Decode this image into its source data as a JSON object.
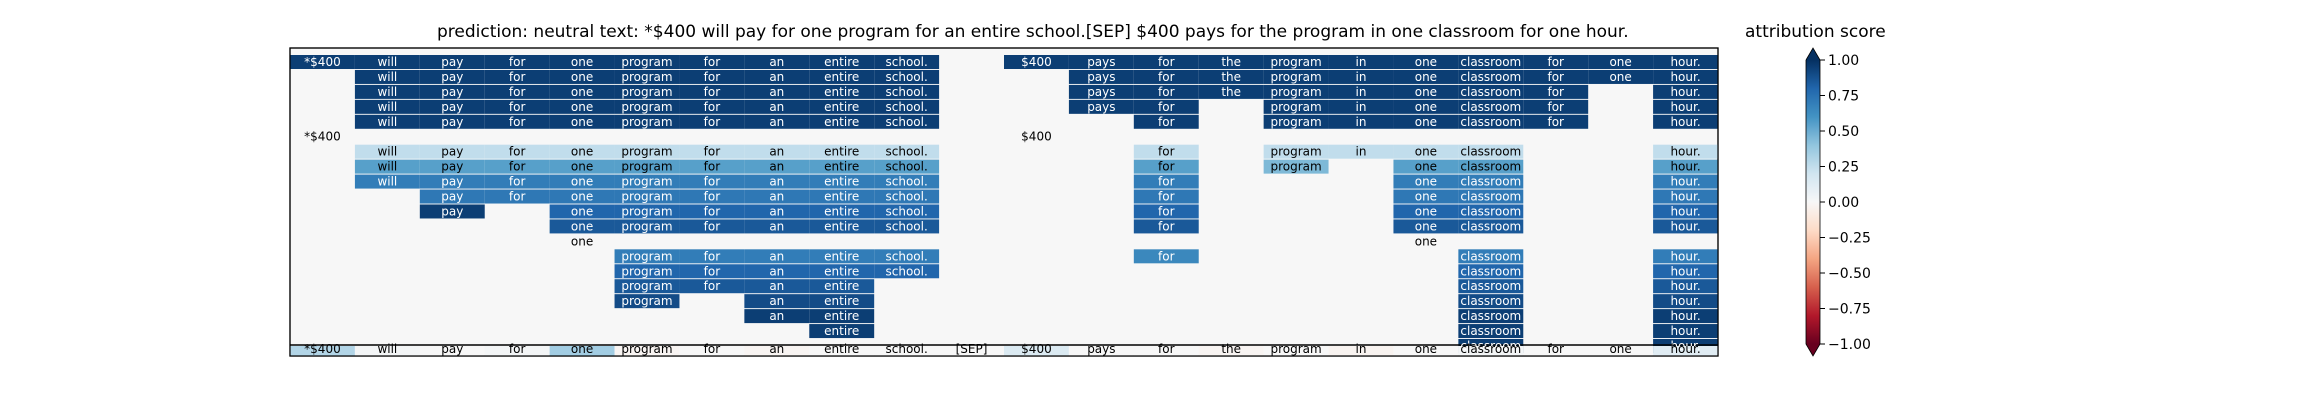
{
  "title": "prediction:  neutral     text:  *$400 will pay for one program for an entire school.[SEP] $400 pays for the program in one classroom for one hour.",
  "colorbar": {
    "label": "attribution score",
    "ticks": [
      "1.00",
      "0.75",
      "0.50",
      "0.25",
      "0.00",
      "−0.25",
      "−0.50",
      "−0.75",
      "−1.00"
    ],
    "tick_values": [
      1.0,
      0.75,
      0.5,
      0.25,
      0.0,
      -0.25,
      -0.5,
      -0.75,
      -1.0
    ]
  },
  "chart_data": {
    "type": "heatmap",
    "description_rows": "hierarchical attribution of spans over tokens",
    "tokens": [
      "*$400",
      "will",
      "pay",
      "for",
      "one",
      "program",
      "for",
      "an",
      "entire",
      "school.",
      "[SEP]",
      "$400",
      "pays",
      "for",
      "the",
      "program",
      "in",
      "one",
      "classroom",
      "for",
      "one",
      "hour."
    ],
    "value_range": [
      -1.0,
      1.0
    ],
    "colormap": "RdBu",
    "rows": [
      {
        "cells": [
          [
            0,
            0.95
          ],
          [
            1,
            0.95
          ],
          [
            2,
            0.95
          ],
          [
            3,
            0.95
          ],
          [
            4,
            0.95
          ],
          [
            5,
            0.95
          ],
          [
            6,
            0.95
          ],
          [
            7,
            0.95
          ],
          [
            8,
            0.95
          ],
          [
            9,
            0.95
          ],
          [
            11,
            0.95
          ],
          [
            12,
            0.95
          ],
          [
            13,
            0.95
          ],
          [
            14,
            0.95
          ],
          [
            15,
            0.95
          ],
          [
            16,
            0.95
          ],
          [
            17,
            0.95
          ],
          [
            18,
            0.95
          ],
          [
            19,
            0.95
          ],
          [
            20,
            0.95
          ],
          [
            21,
            0.95
          ]
        ]
      },
      {
        "cells": [
          [
            1,
            0.95
          ],
          [
            2,
            0.95
          ],
          [
            3,
            0.95
          ],
          [
            4,
            0.95
          ],
          [
            5,
            0.95
          ],
          [
            6,
            0.95
          ],
          [
            7,
            0.95
          ],
          [
            8,
            0.95
          ],
          [
            9,
            0.95
          ],
          [
            12,
            0.95
          ],
          [
            13,
            0.95
          ],
          [
            14,
            0.95
          ],
          [
            15,
            0.95
          ],
          [
            16,
            0.95
          ],
          [
            17,
            0.95
          ],
          [
            18,
            0.95
          ],
          [
            19,
            0.95
          ],
          [
            20,
            0.95
          ],
          [
            21,
            0.95
          ]
        ]
      },
      {
        "cells": [
          [
            1,
            0.95
          ],
          [
            2,
            0.95
          ],
          [
            3,
            0.95
          ],
          [
            4,
            0.95
          ],
          [
            5,
            0.95
          ],
          [
            6,
            0.95
          ],
          [
            7,
            0.95
          ],
          [
            8,
            0.95
          ],
          [
            9,
            0.95
          ],
          [
            12,
            0.95
          ],
          [
            13,
            0.95
          ],
          [
            14,
            0.95
          ],
          [
            15,
            0.95
          ],
          [
            16,
            0.95
          ],
          [
            17,
            0.95
          ],
          [
            18,
            0.95
          ],
          [
            19,
            0.95
          ],
          [
            21,
            0.95
          ]
        ]
      },
      {
        "cells": [
          [
            1,
            0.95
          ],
          [
            2,
            0.95
          ],
          [
            3,
            0.95
          ],
          [
            4,
            0.95
          ],
          [
            5,
            0.95
          ],
          [
            6,
            0.95
          ],
          [
            7,
            0.95
          ],
          [
            8,
            0.95
          ],
          [
            9,
            0.95
          ],
          [
            12,
            0.95
          ],
          [
            13,
            0.95
          ],
          [
            15,
            0.95
          ],
          [
            16,
            0.95
          ],
          [
            17,
            0.95
          ],
          [
            18,
            0.95
          ],
          [
            19,
            0.95
          ],
          [
            21,
            0.95
          ]
        ]
      },
      {
        "cells": [
          [
            1,
            0.95
          ],
          [
            2,
            0.95
          ],
          [
            3,
            0.95
          ],
          [
            4,
            0.95
          ],
          [
            5,
            0.95
          ],
          [
            6,
            0.95
          ],
          [
            7,
            0.95
          ],
          [
            8,
            0.95
          ],
          [
            9,
            0.95
          ],
          [
            13,
            0.95
          ],
          [
            15,
            0.95
          ],
          [
            16,
            0.95
          ],
          [
            17,
            0.95
          ],
          [
            18,
            0.95
          ],
          [
            19,
            0.95
          ],
          [
            21,
            0.95
          ]
        ]
      },
      {
        "cells": [
          [
            0,
            0.0
          ],
          [
            11,
            0.0
          ]
        ]
      },
      {
        "cells": [
          [
            1,
            0.25
          ],
          [
            2,
            0.25
          ],
          [
            3,
            0.25
          ],
          [
            4,
            0.25
          ],
          [
            5,
            0.25
          ],
          [
            6,
            0.25
          ],
          [
            7,
            0.25
          ],
          [
            8,
            0.25
          ],
          [
            9,
            0.25
          ],
          [
            13,
            0.25
          ],
          [
            15,
            0.25
          ],
          [
            16,
            0.25
          ],
          [
            17,
            0.25
          ],
          [
            18,
            0.25
          ],
          [
            21,
            0.25
          ]
        ]
      },
      {
        "cells": [
          [
            1,
            0.55
          ],
          [
            2,
            0.55
          ],
          [
            3,
            0.55
          ],
          [
            4,
            0.55
          ],
          [
            5,
            0.55
          ],
          [
            6,
            0.55
          ],
          [
            7,
            0.55
          ],
          [
            8,
            0.55
          ],
          [
            9,
            0.55
          ],
          [
            13,
            0.55
          ],
          [
            15,
            0.45
          ],
          [
            17,
            0.55
          ],
          [
            18,
            0.55
          ],
          [
            21,
            0.55
          ]
        ]
      },
      {
        "cells": [
          [
            1,
            0.7
          ],
          [
            2,
            0.7
          ],
          [
            3,
            0.7
          ],
          [
            4,
            0.7
          ],
          [
            5,
            0.7
          ],
          [
            6,
            0.7
          ],
          [
            7,
            0.7
          ],
          [
            8,
            0.7
          ],
          [
            9,
            0.7
          ],
          [
            13,
            0.7
          ],
          [
            17,
            0.7
          ],
          [
            18,
            0.7
          ],
          [
            21,
            0.7
          ]
        ]
      },
      {
        "cells": [
          [
            2,
            0.72
          ],
          [
            3,
            0.72
          ],
          [
            4,
            0.72
          ],
          [
            5,
            0.72
          ],
          [
            6,
            0.72
          ],
          [
            7,
            0.72
          ],
          [
            8,
            0.72
          ],
          [
            9,
            0.72
          ],
          [
            13,
            0.72
          ],
          [
            17,
            0.72
          ],
          [
            18,
            0.72
          ],
          [
            21,
            0.72
          ]
        ]
      },
      {
        "cells": [
          [
            2,
            0.95
          ],
          [
            4,
            0.8
          ],
          [
            5,
            0.8
          ],
          [
            6,
            0.8
          ],
          [
            7,
            0.8
          ],
          [
            8,
            0.8
          ],
          [
            9,
            0.8
          ],
          [
            13,
            0.8
          ],
          [
            17,
            0.8
          ],
          [
            18,
            0.8
          ],
          [
            21,
            0.8
          ]
        ]
      },
      {
        "cells": [
          [
            4,
            0.85
          ],
          [
            5,
            0.85
          ],
          [
            6,
            0.85
          ],
          [
            7,
            0.85
          ],
          [
            8,
            0.85
          ],
          [
            9,
            0.85
          ],
          [
            13,
            0.85
          ],
          [
            17,
            0.85
          ],
          [
            18,
            0.85
          ],
          [
            21,
            0.85
          ]
        ]
      },
      {
        "cells": [
          [
            4,
            0.0
          ],
          [
            17,
            0.0
          ]
        ]
      },
      {
        "cells": [
          [
            5,
            0.7
          ],
          [
            6,
            0.7
          ],
          [
            7,
            0.7
          ],
          [
            8,
            0.7
          ],
          [
            9,
            0.7
          ],
          [
            13,
            0.65
          ],
          [
            18,
            0.7
          ],
          [
            21,
            0.7
          ]
        ]
      },
      {
        "cells": [
          [
            5,
            0.8
          ],
          [
            6,
            0.8
          ],
          [
            7,
            0.8
          ],
          [
            8,
            0.8
          ],
          [
            9,
            0.8
          ],
          [
            18,
            0.8
          ],
          [
            21,
            0.8
          ]
        ]
      },
      {
        "cells": [
          [
            5,
            0.85
          ],
          [
            6,
            0.85
          ],
          [
            7,
            0.85
          ],
          [
            8,
            0.85
          ],
          [
            18,
            0.85
          ],
          [
            21,
            0.85
          ]
        ]
      },
      {
        "cells": [
          [
            5,
            0.9
          ],
          [
            7,
            0.9
          ],
          [
            8,
            0.9
          ],
          [
            18,
            0.9
          ],
          [
            21,
            0.9
          ]
        ]
      },
      {
        "cells": [
          [
            7,
            0.95
          ],
          [
            8,
            0.95
          ],
          [
            18,
            0.95
          ],
          [
            21,
            0.95
          ]
        ]
      },
      {
        "cells": [
          [
            8,
            0.95
          ],
          [
            18,
            0.95
          ],
          [
            21,
            0.95
          ]
        ]
      },
      {
        "cells": [
          [
            18,
            0.95
          ],
          [
            21,
            0.95
          ]
        ]
      }
    ],
    "bottom_row": [
      0.3,
      0.02,
      0.0,
      0.02,
      0.35,
      -0.02,
      0.0,
      -0.02,
      0.0,
      0.0,
      0.0,
      0.15,
      0.0,
      0.0,
      -0.02,
      0.0,
      -0.03,
      0.0,
      0.02,
      0.0,
      0.0,
      0.12
    ]
  }
}
